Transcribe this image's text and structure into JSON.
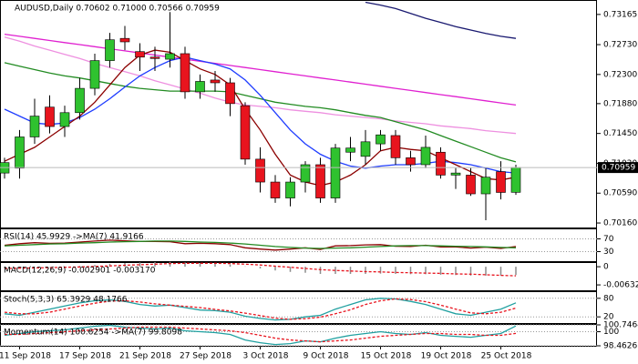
{
  "chart_data": [
    {
      "type": "candlestick",
      "title": "AUDUSD,Daily  0.70602 0.71000 0.70566 0.70959",
      "categories": [
        null,
        "11 Sep 2018",
        null,
        null,
        null,
        "17 Sep 2018",
        null,
        null,
        null,
        "21 Sep 2018",
        null,
        null,
        null,
        "27 Sep 2018",
        null,
        null,
        null,
        "3 Oct 2018",
        null,
        null,
        null,
        "9 Oct 2018",
        null,
        null,
        null,
        "15 Oct 2018",
        null,
        null,
        null,
        "19 Oct 2018",
        null,
        null,
        null,
        "25 Oct 2018",
        null
      ],
      "open": [
        0.7088,
        0.7095,
        0.714,
        0.7183,
        0.7155,
        0.7175,
        0.721,
        0.725,
        0.7282,
        0.7263,
        0.7255,
        0.7252,
        0.726,
        0.7205,
        0.7222,
        0.7218,
        0.7185,
        0.7108,
        0.7075,
        0.7052,
        0.7075,
        0.71,
        0.7052,
        0.7118,
        0.7112,
        0.713,
        0.7142,
        0.711,
        0.71,
        0.7118,
        0.7085,
        0.7085,
        0.7058,
        0.709,
        0.70602
      ],
      "high": [
        0.711,
        0.715,
        0.7195,
        0.72,
        0.7185,
        0.7225,
        0.726,
        0.729,
        0.73,
        0.7275,
        0.727,
        0.732,
        0.727,
        0.723,
        0.7235,
        0.7225,
        0.719,
        0.7125,
        0.7085,
        0.7082,
        0.7105,
        0.711,
        0.713,
        0.714,
        0.715,
        0.715,
        0.715,
        0.712,
        0.7142,
        0.7125,
        0.7095,
        0.7095,
        0.7095,
        0.7105,
        0.71
      ],
      "low": [
        0.708,
        0.708,
        0.713,
        0.7145,
        0.714,
        0.7165,
        0.72,
        0.724,
        0.7265,
        0.7235,
        0.7235,
        0.724,
        0.7195,
        0.7195,
        0.7205,
        0.717,
        0.71,
        0.706,
        0.7045,
        0.704,
        0.706,
        0.7045,
        0.7045,
        0.7105,
        0.71,
        0.712,
        0.71,
        0.709,
        0.7095,
        0.708,
        0.7065,
        0.7055,
        0.702,
        0.705,
        0.70566
      ],
      "close": [
        0.7103,
        0.714,
        0.717,
        0.7155,
        0.7175,
        0.721,
        0.725,
        0.728,
        0.7277,
        0.7255,
        0.7253,
        0.726,
        0.7205,
        0.722,
        0.7218,
        0.7188,
        0.7108,
        0.7075,
        0.7052,
        0.7075,
        0.71,
        0.7052,
        0.7124,
        0.7124,
        0.7133,
        0.7143,
        0.711,
        0.71,
        0.7125,
        0.7085,
        0.7088,
        0.7058,
        0.7082,
        0.706,
        0.70959
      ],
      "up_color": "#2fc22f",
      "down_color": "#e8141e",
      "series": [
        {
          "color": "#191970",
          "values": [
            null,
            null,
            null,
            null,
            null,
            null,
            null,
            null,
            null,
            null,
            null,
            null,
            null,
            null,
            null,
            null,
            null,
            null,
            null,
            null,
            null,
            null,
            null,
            null,
            0.7334,
            0.733,
            0.7325,
            0.7318,
            0.7311,
            0.7305,
            0.7299,
            0.7294,
            0.7289,
            0.7285,
            0.7282
          ]
        },
        {
          "color": "#e020d0",
          "values": [
            0.7288,
            0.7285,
            0.7282,
            0.7279,
            0.7276,
            0.7273,
            0.727,
            0.7267,
            0.7264,
            0.7261,
            0.7258,
            0.7255,
            0.7252,
            0.7249,
            0.7246,
            0.7243,
            0.724,
            0.7237,
            0.7234,
            0.7231,
            0.7228,
            0.7225,
            0.7222,
            0.7219,
            0.7216,
            0.7213,
            0.721,
            0.7207,
            0.7204,
            0.7201,
            0.7198,
            0.7195,
            0.7192,
            0.7189,
            0.7186
          ]
        },
        {
          "color": "#ee90e0",
          "values": [
            0.7284,
            0.7278,
            0.7271,
            0.7265,
            0.7259,
            0.7253,
            0.7246,
            0.724,
            0.7234,
            0.7228,
            0.7221,
            0.7215,
            0.7209,
            0.7203,
            0.7196,
            0.719,
            0.7186,
            0.7184,
            0.7182,
            0.7179,
            0.7177,
            0.7175,
            0.7172,
            0.717,
            0.7168,
            0.7166,
            0.7163,
            0.7161,
            0.7159,
            0.7156,
            0.7154,
            0.7152,
            0.7149,
            0.7147,
            0.7145
          ]
        },
        {
          "color": "#228b22",
          "values": [
            0.7247,
            0.7242,
            0.7237,
            0.7232,
            0.7228,
            0.7225,
            0.7221,
            0.7217,
            0.7213,
            0.721,
            0.7208,
            0.7206,
            0.7206,
            0.7206,
            0.7206,
            0.7205,
            0.72,
            0.7195,
            0.719,
            0.7187,
            0.7184,
            0.7182,
            0.7179,
            0.7175,
            0.7171,
            0.7168,
            0.7162,
            0.7156,
            0.715,
            0.7142,
            0.7134,
            0.7126,
            0.7118,
            0.711,
            0.7104
          ]
        },
        {
          "color": "#1e3cff",
          "values": [
            0.718,
            0.717,
            0.716,
            0.7158,
            0.716,
            0.7168,
            0.718,
            0.7195,
            0.7212,
            0.7228,
            0.724,
            0.725,
            0.7255,
            0.725,
            0.7245,
            0.7238,
            0.7222,
            0.72,
            0.7175,
            0.715,
            0.713,
            0.7115,
            0.7105,
            0.7098,
            0.7095,
            0.7098,
            0.71,
            0.71,
            0.7102,
            0.7105,
            0.7103,
            0.71,
            0.7095,
            0.709,
            0.7088
          ]
        },
        {
          "color": "#8b0000",
          "values": [
            0.7105,
            0.7115,
            0.7125,
            0.714,
            0.7155,
            0.717,
            0.719,
            0.7215,
            0.724,
            0.7258,
            0.7265,
            0.7262,
            0.725,
            0.7238,
            0.723,
            0.7215,
            0.718,
            0.715,
            0.7115,
            0.7085,
            0.7075,
            0.707,
            0.7075,
            0.7085,
            0.71,
            0.712,
            0.7125,
            0.7122,
            0.712,
            0.711,
            0.71,
            0.709,
            0.708,
            0.7078,
            0.7082
          ]
        }
      ],
      "ylim": [
        0.70095,
        0.7336
      ],
      "yticks": [
        0.73165,
        {
          "value": 0.7273,
          "label": "0.72730"
        },
        {
          "value": 0.723,
          "label": "0.72300"
        },
        {
          "value": 0.7188,
          "label": "0.71880"
        },
        {
          "value": 0.7145,
          "label": "0.71450"
        },
        {
          "value": 0.7102,
          "label": "0.71020"
        },
        {
          "value": 0.7059,
          "label": "0.70590"
        },
        {
          "value": 0.7016,
          "label": "0.70160"
        }
      ]
    },
    {
      "type": "line",
      "title": "RSI(14) 45.9929 ->MA(7) 41.9166",
      "grid": true,
      "series": [
        {
          "color": "#8b0000",
          "values": [
            50,
            55,
            58,
            56,
            57,
            60,
            63,
            66,
            64,
            62,
            62,
            61,
            55,
            56,
            55,
            52,
            42,
            38,
            35,
            38,
            42,
            37,
            48,
            49,
            51,
            52,
            47,
            46,
            50,
            45,
            45,
            41,
            44,
            40,
            45.9929
          ]
        },
        {
          "color": "#228b22",
          "values": [
            48,
            50,
            52,
            54,
            55,
            57,
            58,
            60,
            61,
            62,
            63,
            63,
            62,
            60,
            59,
            57,
            54,
            50,
            46,
            43,
            41,
            40,
            41,
            42,
            44,
            46,
            48,
            49,
            49,
            48,
            47,
            46,
            45,
            43,
            41.9166
          ]
        }
      ],
      "ylim": [
        0,
        100
      ],
      "yticks": [
        70,
        30
      ]
    },
    {
      "type": "bar",
      "title": "MACD(12,26,9) -0.002901 -0.003170",
      "color": "#8c8c8c",
      "values": [
        -0.0004,
        -0.0003,
        -0.0002,
        -0.0001,
        0,
        0.0003,
        0.0006,
        0.001,
        0.0013,
        0.0015,
        0.0016,
        0.0017,
        0.0015,
        0.0013,
        0.0011,
        0.0008,
        0.0001,
        -0.0006,
        -0.0013,
        -0.0018,
        -0.0021,
        -0.0025,
        -0.0025,
        -0.0025,
        -0.0025,
        -0.0024,
        -0.0025,
        -0.0026,
        -0.0026,
        -0.0028,
        -0.0029,
        -0.0031,
        -0.0031,
        -0.0031,
        -0.002901
      ],
      "series": [
        {
          "color": "#e8141e",
          "dashed": true,
          "values": [
            -0.0006,
            -0.0005,
            -0.0004,
            -0.0003,
            -0.0002,
            -0.0001,
            0.0001,
            0.0003,
            0.0005,
            0.0007,
            0.0009,
            0.0011,
            0.0012,
            0.0012,
            0.0012,
            0.0011,
            0.0009,
            0.0006,
            0.0002,
            -0.0002,
            -0.0006,
            -0.001,
            -0.0013,
            -0.0015,
            -0.0017,
            -0.0018,
            -0.002,
            -0.0021,
            -0.0022,
            -0.0023,
            -0.0025,
            -0.0026,
            -0.0028,
            -0.003,
            -0.00317
          ]
        }
      ],
      "ylim": [
        -0.0082,
        0.0013
      ],
      "yticks": [
        0,
        -0.006325
      ]
    },
    {
      "type": "line",
      "title": "Stoch(5,3,3) 65.3929 48.1766",
      "grid": true,
      "series": [
        {
          "color": "#20a0a0",
          "values": [
            30,
            25,
            35,
            45,
            55,
            65,
            72,
            75,
            70,
            60,
            55,
            58,
            50,
            42,
            40,
            35,
            22,
            15,
            10,
            12,
            20,
            25,
            45,
            60,
            75,
            80,
            78,
            70,
            60,
            45,
            30,
            25,
            35,
            45,
            65.3929
          ]
        },
        {
          "color": "#e8141e",
          "dashed": true,
          "values": [
            35,
            30,
            30,
            35,
            45,
            55,
            64,
            71,
            72,
            68,
            62,
            58,
            54,
            50,
            44,
            39,
            32,
            24,
            16,
            12,
            14,
            19,
            30,
            43,
            60,
            72,
            78,
            76,
            69,
            58,
            45,
            33,
            30,
            35,
            48.1766
          ]
        }
      ],
      "ylim": [
        0,
        100
      ],
      "yticks": [
        80,
        20
      ]
    },
    {
      "type": "line",
      "title": "Momentum(14) 100.6254 ->MA(7) 99.8098",
      "grid": true,
      "series": [
        {
          "color": "#20a0a0",
          "values": [
            99.6,
            99.8,
            100.0,
            100.1,
            100.2,
            100.4,
            100.6,
            100.7,
            100.5,
            100.4,
            100.3,
            100.4,
            100.1,
            100.0,
            99.9,
            99.7,
            99.1,
            98.8,
            98.6,
            98.7,
            99.0,
            98.9,
            99.3,
            99.6,
            99.8,
            100.0,
            99.8,
            99.7,
            99.9,
            99.6,
            99.5,
            99.4,
            99.6,
            99.8,
            100.6254
          ]
        },
        {
          "color": "#e8141e",
          "dashed": true,
          "values": [
            99.7,
            99.7,
            99.8,
            99.9,
            100.0,
            100.1,
            100.2,
            100.3,
            100.4,
            100.5,
            100.5,
            100.5,
            100.4,
            100.3,
            100.2,
            100.1,
            99.9,
            99.6,
            99.3,
            99.1,
            99.0,
            98.9,
            99.0,
            99.1,
            99.3,
            99.5,
            99.6,
            99.7,
            99.8,
            99.8,
            99.7,
            99.7,
            99.6,
            99.6,
            99.8098
          ]
        }
      ],
      "ylim": [
        98.4626,
        100.7464
      ],
      "yticks": [
        100.7464,
        100,
        98.4626
      ]
    }
  ]
}
